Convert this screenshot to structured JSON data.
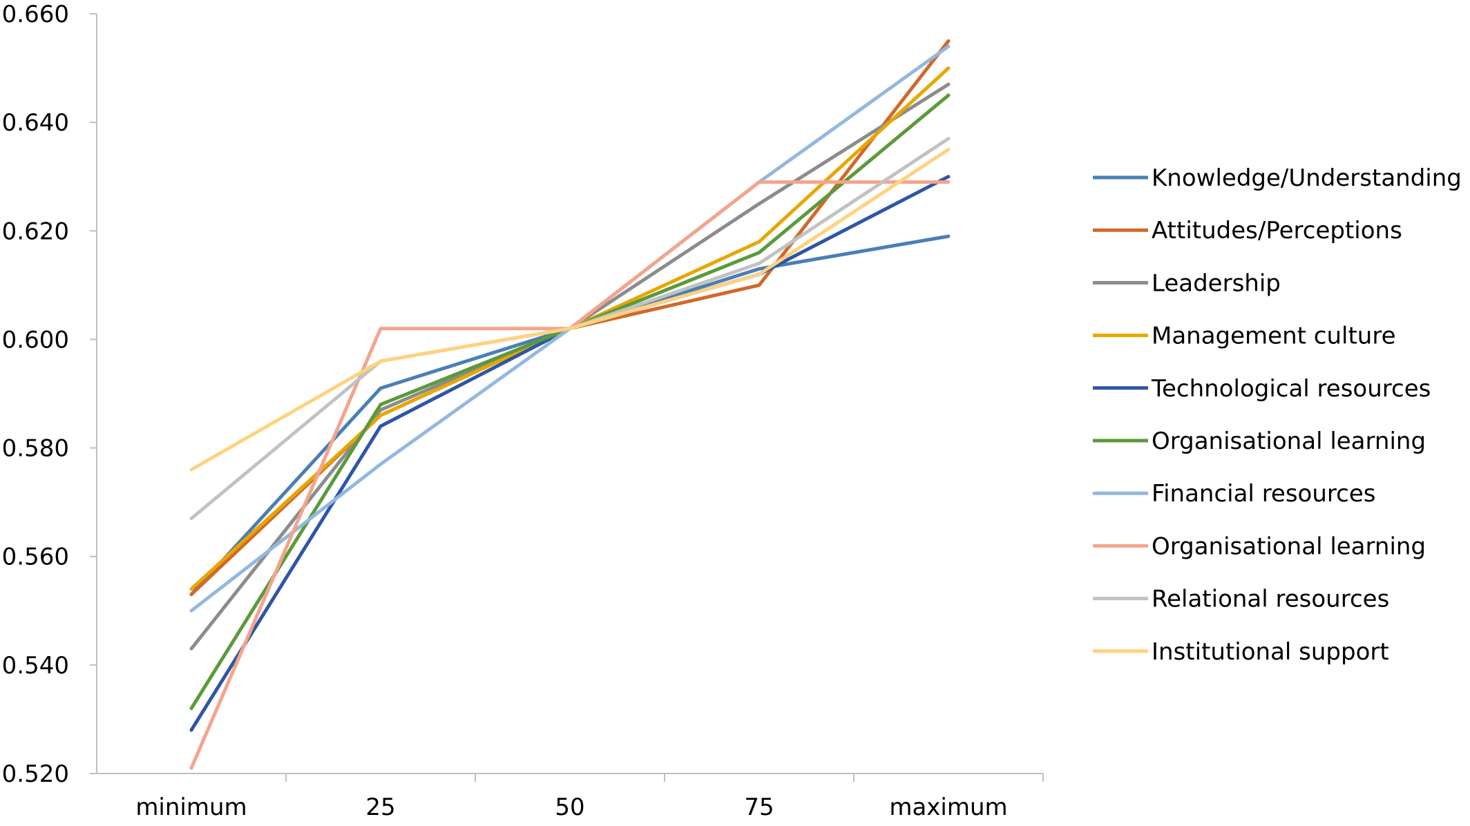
{
  "chart_data": {
    "type": "line",
    "title": "",
    "xlabel": "",
    "ylabel": "",
    "categories": [
      "minimum",
      "25",
      "50",
      "75",
      "maximum"
    ],
    "ylim": [
      0.52,
      0.66
    ],
    "yticks": [
      "0.520",
      "0.540",
      "0.560",
      "0.580",
      "0.600",
      "0.620",
      "0.640",
      "0.660"
    ],
    "grid": false,
    "legend_position": "right",
    "series": [
      {
        "name": "Knowledge/Understanding",
        "color": "#4a7fb5",
        "values": [
          0.553,
          0.591,
          0.602,
          0.613,
          0.619
        ]
      },
      {
        "name": "Attitudes/Perceptions",
        "color": "#d0692b",
        "values": [
          0.553,
          0.586,
          0.602,
          0.61,
          0.655
        ]
      },
      {
        "name": "Leadership",
        "color": "#8c8c8c",
        "values": [
          0.543,
          0.587,
          0.602,
          0.625,
          0.647
        ]
      },
      {
        "name": "Management culture",
        "color": "#e8a600",
        "values": [
          0.554,
          0.586,
          0.602,
          0.618,
          0.65
        ]
      },
      {
        "name": "Technological resources",
        "color": "#2e55a6",
        "values": [
          0.528,
          0.584,
          0.602,
          0.612,
          0.63
        ]
      },
      {
        "name": "Organisational learning",
        "color": "#5a9a3a",
        "values": [
          0.532,
          0.588,
          0.602,
          0.616,
          0.645
        ]
      },
      {
        "name": "Financial resources",
        "color": "#93b8e0",
        "values": [
          0.55,
          0.577,
          0.602,
          0.629,
          0.654
        ]
      },
      {
        "name": "Organisational learning",
        "color": "#f4a48c",
        "values": [
          0.521,
          0.602,
          0.602,
          0.629,
          0.629
        ]
      },
      {
        "name": "Relational resources",
        "color": "#c2c2c2",
        "values": [
          0.567,
          0.596,
          0.602,
          0.614,
          0.637
        ]
      },
      {
        "name": "Institutional support",
        "color": "#ffd27f",
        "values": [
          0.576,
          0.596,
          0.602,
          0.612,
          0.635
        ]
      }
    ]
  }
}
